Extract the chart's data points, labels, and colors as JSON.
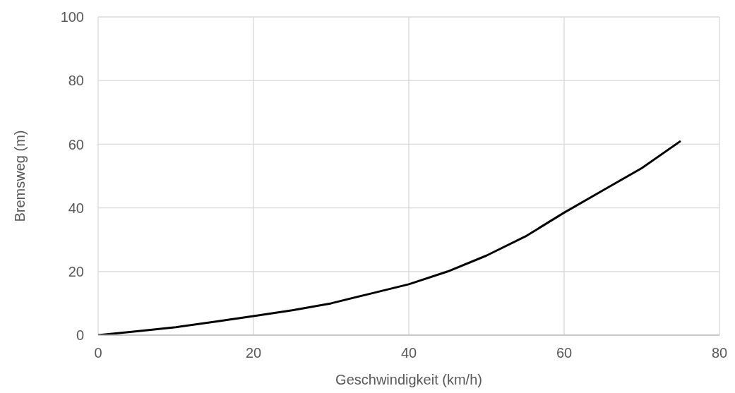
{
  "chart_data": {
    "type": "line",
    "xlabel": "Geschwindigkeit (km/h)",
    "ylabel": "Bremsweg (m)",
    "x": [
      0,
      5,
      10,
      15,
      20,
      25,
      30,
      35,
      40,
      45,
      50,
      55,
      60,
      65,
      70,
      75
    ],
    "series": [
      {
        "color": "#000000",
        "values": [
          0,
          1.2,
          2.5,
          4.2,
          6,
          7.8,
          10,
          13,
          16,
          20,
          25,
          31,
          38.5,
          45.5,
          52.5,
          61
        ]
      }
    ],
    "xlim": [
      0,
      80
    ],
    "xticks": [
      0,
      20,
      40,
      60,
      80
    ],
    "ylim": [
      0,
      100
    ],
    "yticks": [
      0,
      20,
      40,
      60,
      80,
      100
    ],
    "grid": true,
    "marker": "none",
    "line_style": "solid"
  }
}
